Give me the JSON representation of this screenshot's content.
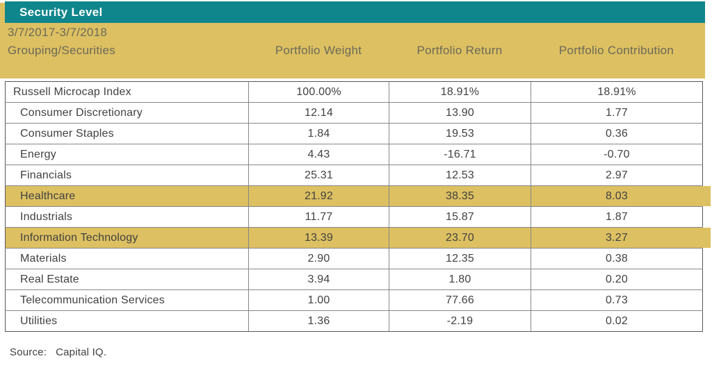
{
  "colors": {
    "teal": "#0E868C",
    "gold": "#DDC061",
    "border": "#85878A",
    "border_dark": "#55565A",
    "header_text": "#6B695A",
    "body_text": "#414142",
    "title_text": "#FFFFFF"
  },
  "banner": {
    "title": "Security Level"
  },
  "table": {
    "period": "3/7/2017-3/7/2018",
    "grouping_label": "Grouping/Securities",
    "columns": [
      "Portfolio Weight",
      "Portfolio Return",
      "Portfolio Contribution"
    ],
    "rows": [
      {
        "label": "Russell Microcap Index",
        "values": [
          "100.00%",
          "18.91%",
          "18.91%"
        ],
        "indent": false,
        "highlight": false
      },
      {
        "label": "Consumer Discretionary",
        "values": [
          "12.14",
          "13.90",
          "1.77"
        ],
        "indent": true,
        "highlight": false
      },
      {
        "label": "Consumer Staples",
        "values": [
          "1.84",
          "19.53",
          "0.36"
        ],
        "indent": true,
        "highlight": false
      },
      {
        "label": "Energy",
        "values": [
          "4.43",
          "-16.71",
          "-0.70"
        ],
        "indent": true,
        "highlight": false
      },
      {
        "label": "Financials",
        "values": [
          "25.31",
          "12.53",
          "2.97"
        ],
        "indent": true,
        "highlight": false
      },
      {
        "label": "Healthcare",
        "values": [
          "21.92",
          "38.35",
          "8.03"
        ],
        "indent": true,
        "highlight": true
      },
      {
        "label": "Industrials",
        "values": [
          "11.77",
          "15.87",
          "1.87"
        ],
        "indent": true,
        "highlight": false
      },
      {
        "label": "Information Technology",
        "values": [
          "13.39",
          "23.70",
          "3.27"
        ],
        "indent": true,
        "highlight": true
      },
      {
        "label": "Materials",
        "values": [
          "2.90",
          "12.35",
          "0.38"
        ],
        "indent": true,
        "highlight": false
      },
      {
        "label": "Real Estate",
        "values": [
          "3.94",
          "1.80",
          "0.20"
        ],
        "indent": true,
        "highlight": false
      },
      {
        "label": "Telecommunication Services",
        "values": [
          "1.00",
          "77.66",
          "0.73"
        ],
        "indent": true,
        "highlight": false
      },
      {
        "label": "Utilities",
        "values": [
          "1.36",
          "-2.19",
          "0.02"
        ],
        "indent": true,
        "highlight": false
      }
    ]
  },
  "footer": {
    "source_label": "Source:",
    "source_value": "Capital IQ."
  }
}
